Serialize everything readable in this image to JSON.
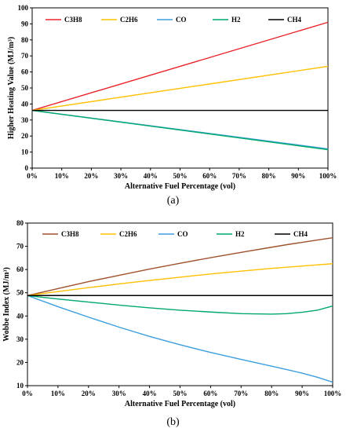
{
  "panels": [
    {
      "label": "(a)",
      "chart_data": {
        "type": "line",
        "xlabel": "Alternative Fuel Percentage (vol)",
        "ylabel": "Higher Heating Value (MJ/m³)",
        "xlim": [
          0,
          100
        ],
        "ylim": [
          0,
          100
        ],
        "x_ticks": [
          "0%",
          "10%",
          "20%",
          "30%",
          "40%",
          "50%",
          "60%",
          "70%",
          "80%",
          "90%",
          "100%"
        ],
        "y_ticks": [
          "0",
          "10",
          "20",
          "30",
          "40",
          "50",
          "60",
          "70",
          "80",
          "90",
          "100"
        ],
        "grid": false,
        "legend_position": "top",
        "x": [
          0,
          100
        ],
        "series": [
          {
            "name": "C3H8",
            "color": "#e8262b",
            "values": [
              36,
              91
            ]
          },
          {
            "name": "C2H6",
            "color": "#ffc000",
            "values": [
              36,
              63.5
            ]
          },
          {
            "name": "CO",
            "color": "#3d9ee0",
            "values": [
              36,
              12
            ]
          },
          {
            "name": "H2",
            "color": "#00a86b",
            "values": [
              36,
              11.5
            ]
          },
          {
            "name": "CH4",
            "color": "#000000",
            "values": [
              36,
              36
            ]
          }
        ]
      }
    },
    {
      "label": "(b)",
      "chart_data": {
        "type": "line",
        "xlabel": "Alternative Fuel Percentage (vol)",
        "ylabel": "Wobbe Index (MJ/m³)",
        "xlim": [
          0,
          100
        ],
        "ylim": [
          10,
          80
        ],
        "x_ticks": [
          "0%",
          "10%",
          "20%",
          "30%",
          "40%",
          "50%",
          "60%",
          "70%",
          "80%",
          "90%",
          "100%"
        ],
        "y_ticks": [
          "10",
          "20",
          "30",
          "40",
          "50",
          "60",
          "70",
          "80"
        ],
        "grid": false,
        "legend_position": "top",
        "x": [
          0,
          10,
          20,
          30,
          40,
          50,
          60,
          70,
          80,
          85,
          90,
          95,
          100
        ],
        "series": [
          {
            "name": "C3H8",
            "color": "#a0522d",
            "values": [
              48.8,
              51.8,
              54.8,
              57.5,
              60.2,
              62.7,
              65.1,
              67.4,
              69.6,
              70.7,
              71.7,
              72.7,
              73.7
            ]
          },
          {
            "name": "C2H6",
            "color": "#ffc000",
            "values": [
              48.8,
              50.5,
              52.2,
              53.8,
              55.3,
              56.7,
              58.1,
              59.3,
              60.5,
              61.0,
              61.5,
              62.0,
              62.5
            ]
          },
          {
            "name": "CO",
            "color": "#3d9ee0",
            "values": [
              48.8,
              44.0,
              39.5,
              35.2,
              31.2,
              27.6,
              24.3,
              21.3,
              18.4,
              16.9,
              15.4,
              13.6,
              11.5
            ]
          },
          {
            "name": "H2",
            "color": "#00a86b",
            "values": [
              48.8,
              47.3,
              46.0,
              44.7,
              43.5,
              42.5,
              41.7,
              41.0,
              40.8,
              41.0,
              41.6,
              42.5,
              44.3
            ]
          },
          {
            "name": "CH4",
            "color": "#000000",
            "values": [
              48.8,
              48.8,
              48.8,
              48.8,
              48.8,
              48.8,
              48.8,
              48.8,
              48.8,
              48.8,
              48.8,
              48.8,
              48.8
            ]
          }
        ]
      }
    }
  ]
}
